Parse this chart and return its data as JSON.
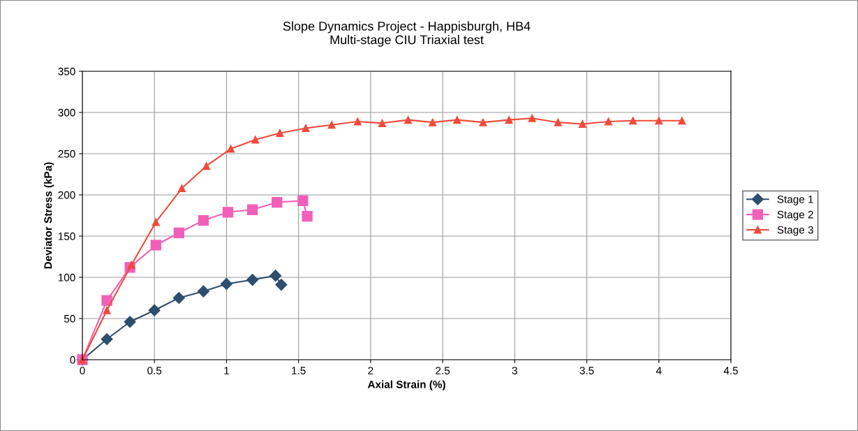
{
  "chart_data": {
    "type": "line",
    "title": "Slope Dynamics Project - Happisburgh, HB4\nMulti-stage CIU Triaxial test",
    "xlabel": "Axial Strain (%)",
    "ylabel": "Deviator Stress (kPa)",
    "xlim": [
      0,
      4.5
    ],
    "xticks": [
      0,
      0.5,
      1,
      1.5,
      2,
      2.5,
      3,
      3.5,
      4,
      4.5
    ],
    "ylim": [
      0,
      350
    ],
    "yticks": [
      0,
      50,
      100,
      150,
      200,
      250,
      300,
      350
    ],
    "grid": true,
    "legend": "right",
    "series": [
      {
        "name": "Stage 1",
        "color": "#2e4e6e",
        "marker": "diamond",
        "x": [
          0,
          0.17,
          0.33,
          0.5,
          0.67,
          0.84,
          1.0,
          1.18,
          1.34,
          1.38
        ],
        "values": [
          0,
          25,
          46,
          60,
          75,
          83,
          92,
          97,
          102,
          91
        ]
      },
      {
        "name": "Stage 2",
        "color": "#f060b8",
        "marker": "square",
        "x": [
          0,
          0.17,
          0.33,
          0.51,
          0.67,
          0.84,
          1.01,
          1.18,
          1.35,
          1.53,
          1.56
        ],
        "values": [
          0,
          72,
          112,
          139,
          154,
          169,
          179,
          182,
          191,
          193,
          174
        ]
      },
      {
        "name": "Stage 3",
        "color": "#f04a3a",
        "marker": "triangle",
        "x": [
          0,
          0.17,
          0.34,
          0.51,
          0.69,
          0.86,
          1.03,
          1.2,
          1.37,
          1.55,
          1.73,
          1.91,
          2.08,
          2.26,
          2.43,
          2.6,
          2.78,
          2.96,
          3.12,
          3.3,
          3.47,
          3.65,
          3.82,
          4.0,
          4.16
        ],
        "values": [
          0,
          60,
          115,
          167,
          208,
          235,
          256,
          267,
          275,
          281,
          285,
          289,
          287,
          291,
          288,
          291,
          288,
          291,
          293,
          288,
          286,
          289,
          290,
          290,
          290
        ]
      }
    ]
  }
}
